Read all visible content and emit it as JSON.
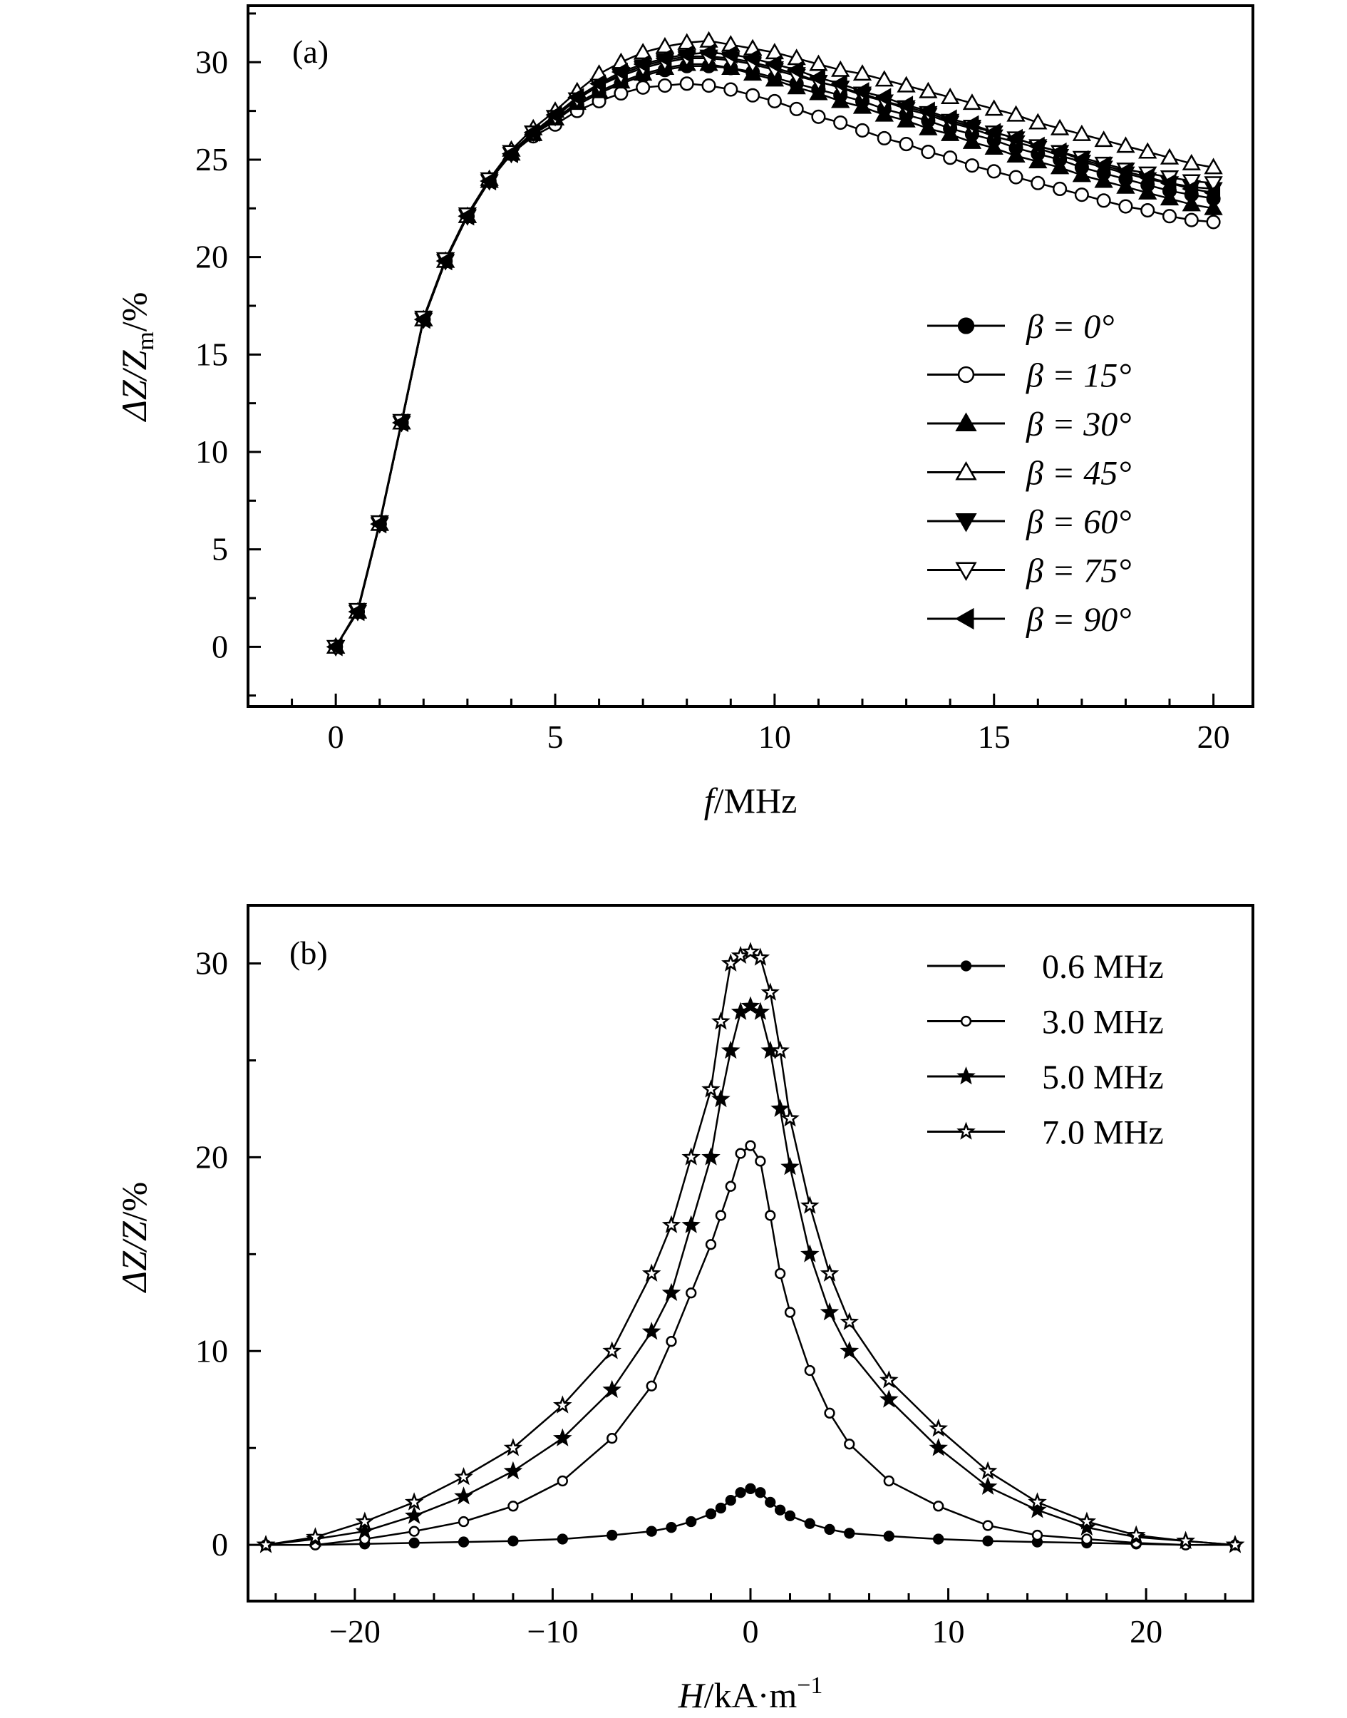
{
  "chart_data": [
    {
      "type": "line",
      "panel_label": "(a)",
      "xlabel_var": "f",
      "xlabel_unit": "/MHz",
      "ylabel_main": "ΔZ/Z",
      "ylabel_sub": "m",
      "ylabel_unit": "/%",
      "xlim": [
        -2,
        20.9
      ],
      "ylim": [
        -3.06,
        32.9
      ],
      "xticks": [
        0,
        5,
        10,
        15,
        20
      ],
      "xtick_labels": [
        "0",
        "5",
        "10",
        "15",
        "20"
      ],
      "yticks": [
        0,
        5,
        10,
        15,
        20,
        25,
        30
      ],
      "ytick_labels": [
        "0",
        "5",
        "10",
        "15",
        "20",
        "25",
        "30"
      ],
      "grid": false,
      "legend_position": "right",
      "x": [
        0,
        0.5,
        1,
        1.5,
        2,
        2.5,
        3,
        3.5,
        4,
        4.5,
        5,
        5.5,
        6,
        6.5,
        7,
        7.5,
        8,
        8.5,
        9,
        9.5,
        10,
        10.5,
        11,
        11.5,
        12,
        12.5,
        13,
        13.5,
        14,
        14.5,
        15,
        15.5,
        16,
        16.5,
        17,
        17.5,
        18,
        18.5,
        19,
        19.5,
        20
      ],
      "series": [
        {
          "name": "β = 0°",
          "marker": "circle-filled",
          "values": [
            0,
            1.8,
            6.3,
            11.5,
            16.8,
            19.8,
            22.1,
            23.9,
            25.3,
            26.3,
            27.0,
            27.8,
            28.4,
            28.9,
            29.3,
            29.6,
            29.8,
            29.8,
            29.7,
            29.5,
            29.2,
            28.9,
            28.6,
            28.3,
            28.0,
            27.6,
            27.3,
            27.0,
            26.6,
            26.3,
            26.0,
            25.6,
            25.3,
            25.0,
            24.6,
            24.3,
            24.0,
            23.7,
            23.4,
            23.2,
            23.0
          ]
        },
        {
          "name": "β = 15°",
          "marker": "circle-open",
          "values": [
            0,
            1.8,
            6.3,
            11.5,
            16.8,
            19.8,
            22.1,
            23.9,
            25.3,
            26.2,
            26.8,
            27.5,
            28.0,
            28.4,
            28.7,
            28.8,
            28.9,
            28.8,
            28.6,
            28.3,
            28.0,
            27.6,
            27.2,
            26.9,
            26.5,
            26.1,
            25.8,
            25.4,
            25.1,
            24.7,
            24.4,
            24.1,
            23.8,
            23.5,
            23.2,
            22.9,
            22.6,
            22.4,
            22.1,
            21.9,
            21.8
          ]
        },
        {
          "name": "β = 30°",
          "marker": "triangle-up-filled",
          "values": [
            0,
            1.8,
            6.3,
            11.5,
            16.8,
            19.8,
            22.1,
            23.9,
            25.3,
            26.3,
            27.1,
            27.9,
            28.5,
            29.0,
            29.4,
            29.7,
            29.9,
            29.9,
            29.7,
            29.4,
            29.1,
            28.7,
            28.4,
            28.0,
            27.7,
            27.3,
            27.0,
            26.6,
            26.3,
            25.9,
            25.6,
            25.2,
            24.9,
            24.6,
            24.2,
            23.9,
            23.6,
            23.3,
            23.0,
            22.7,
            22.5
          ]
        },
        {
          "name": "β = 45°",
          "marker": "triangle-up-open",
          "values": [
            0,
            1.8,
            6.3,
            11.5,
            16.8,
            19.8,
            22.1,
            24.0,
            25.5,
            26.6,
            27.5,
            28.5,
            29.4,
            30.0,
            30.5,
            30.8,
            31.0,
            31.1,
            30.9,
            30.7,
            30.5,
            30.2,
            29.9,
            29.6,
            29.4,
            29.1,
            28.8,
            28.5,
            28.2,
            27.9,
            27.6,
            27.3,
            26.9,
            26.6,
            26.3,
            26.0,
            25.7,
            25.4,
            25.1,
            24.8,
            24.6
          ]
        },
        {
          "name": "β = 60°",
          "marker": "triangle-down-filled",
          "values": [
            0,
            1.8,
            6.3,
            11.5,
            16.8,
            19.8,
            22.1,
            23.9,
            25.3,
            26.4,
            27.2,
            28.1,
            28.8,
            29.4,
            29.8,
            30.1,
            30.3,
            30.3,
            30.2,
            30.0,
            29.7,
            29.4,
            29.0,
            28.7,
            28.3,
            28.0,
            27.6,
            27.3,
            26.9,
            26.6,
            26.2,
            25.9,
            25.6,
            25.2,
            24.9,
            24.6,
            24.3,
            24.0,
            23.8,
            23.6,
            23.5
          ]
        },
        {
          "name": "β = 75°",
          "marker": "triangle-down-open",
          "values": [
            0,
            1.9,
            6.4,
            11.6,
            16.9,
            19.9,
            22.2,
            24.0,
            25.4,
            26.4,
            27.2,
            28.1,
            28.8,
            29.3,
            29.7,
            30.0,
            30.2,
            30.2,
            30.1,
            29.9,
            29.6,
            29.3,
            29.0,
            28.7,
            28.4,
            28.0,
            27.7,
            27.4,
            27.0,
            26.7,
            26.4,
            26.1,
            25.7,
            25.4,
            25.1,
            24.8,
            24.5,
            24.3,
            24.1,
            23.9,
            23.8
          ]
        },
        {
          "name": "β = 90°",
          "marker": "triangle-left-filled",
          "values": [
            0,
            1.8,
            6.3,
            11.5,
            16.8,
            19.8,
            22.1,
            23.9,
            25.3,
            26.4,
            27.3,
            28.2,
            28.9,
            29.5,
            29.9,
            30.2,
            30.4,
            30.5,
            30.4,
            30.2,
            29.9,
            29.6,
            29.2,
            28.9,
            28.5,
            28.2,
            27.8,
            27.5,
            27.1,
            26.8,
            26.4,
            26.1,
            25.7,
            25.4,
            25.0,
            24.7,
            24.4,
            24.1,
            23.8,
            23.5,
            23.3
          ]
        }
      ]
    },
    {
      "type": "line",
      "panel_label": "(b)",
      "xlabel_var": "H",
      "xlabel_unit": "/kA·m",
      "xlabel_sup": "−1",
      "ylabel_main": "ΔZ/Z",
      "ylabel_unit": "/%",
      "xlim": [
        -25.4,
        25.4
      ],
      "ylim": [
        -2.9,
        33
      ],
      "xticks": [
        -20,
        -10,
        0,
        10,
        20
      ],
      "xtick_labels": [
        "−20",
        "−10",
        "0",
        "10",
        "20"
      ],
      "yticks": [
        0,
        10,
        20,
        30
      ],
      "ytick_labels": [
        "0",
        "10",
        "20",
        "30"
      ],
      "grid": false,
      "legend_position": "top-right",
      "x": [
        -24.5,
        -22,
        -19.5,
        -17,
        -14.5,
        -12,
        -9.5,
        -7,
        -5,
        -4,
        -3,
        -2,
        -1.5,
        -1,
        -0.5,
        0,
        0.5,
        1,
        1.5,
        2,
        3,
        4,
        5,
        7,
        9.5,
        12,
        14.5,
        17,
        19.5,
        22,
        24.5
      ],
      "series": [
        {
          "name": "0.6 MHz",
          "marker": "circle-filled",
          "values": [
            0,
            0,
            0.05,
            0.1,
            0.15,
            0.2,
            0.3,
            0.5,
            0.7,
            0.9,
            1.2,
            1.6,
            1.9,
            2.3,
            2.7,
            2.9,
            2.7,
            2.2,
            1.8,
            1.5,
            1.1,
            0.8,
            0.6,
            0.45,
            0.3,
            0.2,
            0.15,
            0.1,
            0.05,
            0,
            0
          ]
        },
        {
          "name": "3.0 MHz",
          "marker": "circle-open",
          "values": [
            0,
            0,
            0.3,
            0.7,
            1.2,
            2.0,
            3.3,
            5.5,
            8.2,
            10.5,
            13.0,
            15.5,
            17.0,
            18.5,
            20.2,
            20.6,
            19.8,
            17.0,
            14.0,
            12.0,
            9.0,
            6.8,
            5.2,
            3.3,
            2.0,
            1.0,
            0.5,
            0.3,
            0.1,
            0,
            0
          ]
        },
        {
          "name": "5.0 MHz",
          "marker": "star-filled",
          "values": [
            0,
            0.3,
            0.7,
            1.5,
            2.5,
            3.8,
            5.5,
            8.0,
            11.0,
            13.0,
            16.5,
            20.0,
            23.0,
            25.5,
            27.5,
            27.8,
            27.5,
            25.5,
            22.5,
            19.5,
            15.0,
            12.0,
            10.0,
            7.5,
            5.0,
            3.0,
            1.8,
            0.9,
            0.4,
            0.2,
            0
          ]
        },
        {
          "name": "7.0 MHz",
          "marker": "star-open",
          "values": [
            0,
            0.4,
            1.2,
            2.2,
            3.5,
            5.0,
            7.2,
            10.0,
            14.0,
            16.5,
            20.0,
            23.5,
            27.0,
            30.0,
            30.4,
            30.6,
            30.3,
            28.5,
            25.5,
            22.0,
            17.5,
            14.0,
            11.5,
            8.5,
            6.0,
            3.8,
            2.2,
            1.2,
            0.5,
            0.2,
            0
          ]
        }
      ]
    }
  ]
}
